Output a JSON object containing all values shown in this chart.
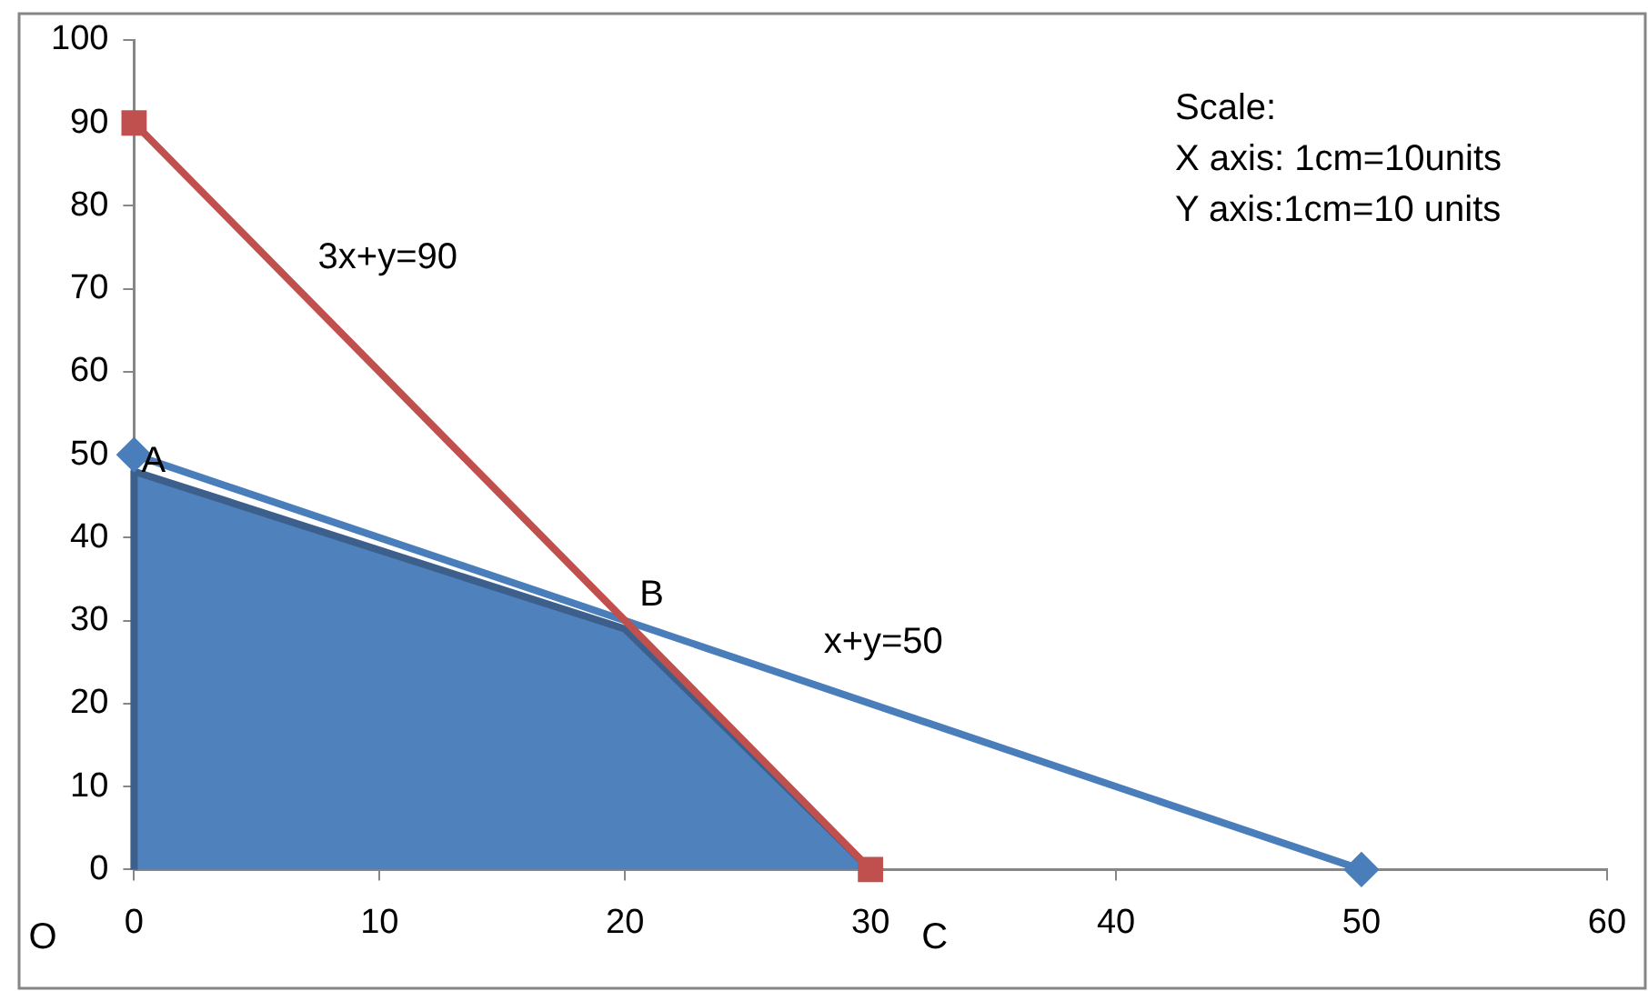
{
  "chart_data": {
    "type": "line",
    "series": [
      {
        "type": "area",
        "color": "#4f81bd",
        "x": [
          0,
          0,
          20,
          30
        ],
        "values": [
          0,
          48,
          29,
          0
        ],
        "marker": "none"
      },
      {
        "type": "line",
        "name": "x+y=50",
        "color": "#4a7ebb",
        "x": [
          0,
          50
        ],
        "values": [
          50,
          0
        ],
        "marker": "diamond"
      },
      {
        "type": "line",
        "name": "3x+y=90",
        "color": "#c0504d",
        "x": [
          0,
          30
        ],
        "values": [
          90,
          0
        ],
        "marker": "square"
      }
    ],
    "xlim": [
      0,
      60
    ],
    "xticks": [
      0,
      10,
      20,
      30,
      40,
      50,
      60
    ],
    "ylim": [
      0,
      100
    ],
    "yticks": [
      0,
      10,
      20,
      30,
      40,
      50,
      60,
      70,
      80,
      90,
      100
    ],
    "grid": false,
    "legend": false,
    "annotations": [
      {
        "text": "A",
        "x": 0,
        "y": 50
      },
      {
        "text": "B",
        "x": 20,
        "y": 30
      },
      {
        "text": "O",
        "x": 0,
        "y": 0
      },
      {
        "text": "C",
        "x": 30,
        "y": 0
      },
      "Scale:",
      "X axis: 1cm=10units",
      "Y axis:1cm=10 units"
    ]
  }
}
